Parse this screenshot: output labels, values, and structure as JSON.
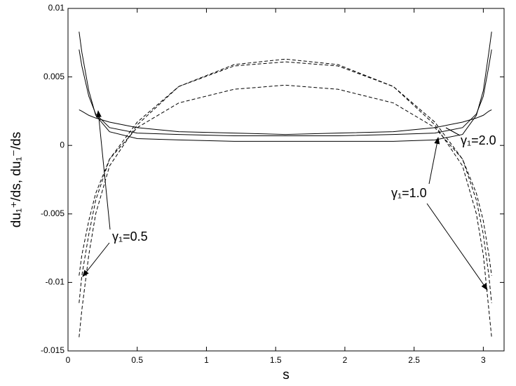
{
  "chart_data": {
    "type": "line",
    "xlabel": "s",
    "ylabel": "du₁⁺/ds, du₁⁻/ds",
    "x": [
      0.08,
      0.1,
      0.15,
      0.2,
      0.3,
      0.5,
      0.8,
      1.2,
      1.57,
      1.95,
      2.35,
      2.65,
      2.85,
      2.95,
      3.0,
      3.04,
      3.06
    ],
    "series": [
      {
        "color": "#000000",
        "dash": false,
        "values": [
          0.0083,
          0.0068,
          0.004,
          0.0022,
          0.001,
          0.0005,
          0.0004,
          0.0003,
          0.0003,
          0.0003,
          0.0003,
          0.0004,
          0.0008,
          0.0022,
          0.004,
          0.0068,
          0.0083
        ]
      },
      {
        "color": "#000000",
        "dash": false,
        "values": [
          0.007,
          0.0058,
          0.0036,
          0.0023,
          0.0013,
          0.0009,
          0.0008,
          0.0007,
          0.0007,
          0.0007,
          0.0008,
          0.0009,
          0.0013,
          0.0023,
          0.0036,
          0.0058,
          0.007
        ]
      },
      {
        "color": "#000000",
        "dash": false,
        "values": [
          0.0026,
          0.0025,
          0.0022,
          0.002,
          0.0017,
          0.0013,
          0.001,
          0.0009,
          0.0008,
          0.0009,
          0.001,
          0.0013,
          0.0017,
          0.002,
          0.0022,
          0.0025,
          0.0026
        ]
      },
      {
        "color": "#000000",
        "dash": true,
        "values": [
          -0.014,
          -0.012,
          -0.008,
          -0.005,
          -0.0015,
          0.0015,
          0.0043,
          0.0059,
          0.0063,
          0.0059,
          0.0043,
          0.0015,
          -0.0015,
          -0.005,
          -0.008,
          -0.012,
          -0.014
        ]
      },
      {
        "color": "#000000",
        "dash": true,
        "values": [
          -0.0115,
          -0.0095,
          -0.0065,
          -0.004,
          -0.001,
          0.0017,
          0.0043,
          0.0058,
          0.0061,
          0.0058,
          0.0043,
          0.0017,
          -0.001,
          -0.004,
          -0.0065,
          -0.0095,
          -0.0115
        ]
      },
      {
        "color": "#000000",
        "dash": true,
        "values": [
          -0.0095,
          -0.008,
          -0.0055,
          -0.0035,
          -0.001,
          0.0013,
          0.0031,
          0.0041,
          0.0044,
          0.0041,
          0.0031,
          0.0013,
          -0.001,
          -0.0035,
          -0.0055,
          -0.008,
          -0.0095
        ]
      }
    ],
    "xlim": [
      0,
      3.15
    ],
    "ylim": [
      -0.015,
      0.01
    ],
    "xticks": [
      0,
      0.5,
      1,
      1.5,
      2,
      2.5,
      3
    ],
    "yticks": [
      -0.015,
      -0.01,
      -0.005,
      0,
      0.005,
      0.01
    ],
    "annotations": [
      "γ₁=0.5",
      "γ₁=1.0",
      "γ₁=2.0"
    ]
  }
}
